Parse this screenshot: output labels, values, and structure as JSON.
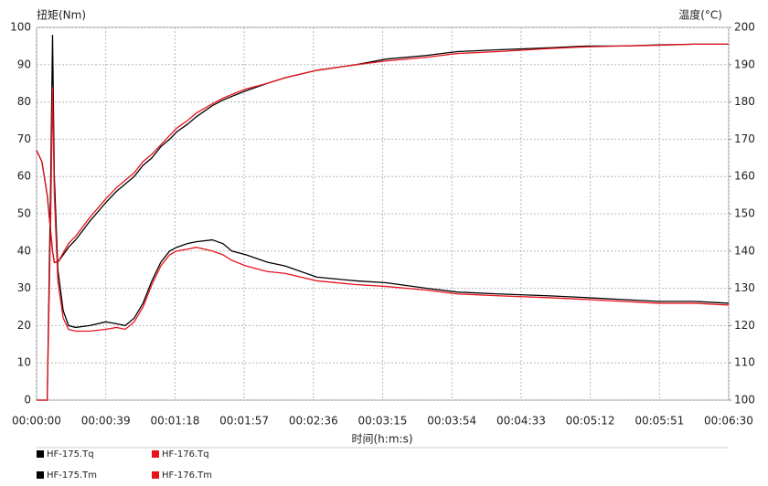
{
  "chart_data": {
    "type": "line",
    "y_label": "扭矩(Nm)",
    "y2_label": "温度(°C)",
    "x_label": "时间(h:m:s)",
    "x": [
      0,
      3,
      6,
      8,
      9,
      10,
      12,
      15,
      18,
      22,
      30,
      39,
      45,
      50,
      55,
      60,
      65,
      70,
      75,
      79,
      85,
      90,
      99,
      105,
      110,
      118,
      130,
      140,
      158,
      180,
      197,
      220,
      237,
      260,
      288,
      310,
      330,
      350,
      370,
      390
    ],
    "series": [
      {
        "name": "HF-175.Tq",
        "color": "#000000",
        "axis": "y",
        "values": [
          0,
          0,
          0,
          60,
          98,
          60,
          35,
          24,
          20,
          19.5,
          20,
          21,
          20.5,
          20,
          22,
          26,
          32,
          37,
          40,
          41,
          42,
          42.5,
          43,
          42,
          40,
          39,
          37,
          36,
          33,
          32,
          31.5,
          30,
          29,
          28.5,
          28,
          27.5,
          27,
          26.5,
          26.5,
          26
        ]
      },
      {
        "name": "HF-176.Tq",
        "color": "#e8141c",
        "axis": "y",
        "values": [
          0,
          0,
          0,
          50,
          84,
          55,
          32,
          22,
          19,
          18.5,
          18.5,
          19,
          19.5,
          19,
          21,
          25,
          31,
          36,
          39,
          40,
          40.5,
          41,
          40,
          39,
          37.5,
          36,
          34.5,
          34,
          32,
          31,
          30.5,
          29.5,
          28.5,
          28,
          27.5,
          27,
          26.5,
          26,
          26,
          25.5
        ]
      },
      {
        "name": "HF-175.Tm",
        "color": "#000000",
        "axis": "y2",
        "values": [
          167,
          164,
          155,
          145,
          140,
          137,
          137,
          139,
          141,
          143,
          148,
          153,
          156,
          158,
          160,
          163,
          165,
          168,
          170,
          172,
          174,
          176,
          179,
          180.5,
          181.5,
          183,
          185,
          186.5,
          188.5,
          190,
          191.5,
          192.5,
          193.5,
          194,
          194.5,
          195,
          195,
          195.3,
          195.5,
          195.5
        ]
      },
      {
        "name": "HF-176.Tm",
        "color": "#e8141c",
        "axis": "y2",
        "values": [
          167,
          164,
          155,
          145,
          140,
          137,
          137,
          139.5,
          142,
          144,
          149,
          154,
          157,
          159,
          161,
          164,
          166,
          168.5,
          171,
          173,
          175,
          177,
          179.5,
          181,
          182,
          183.5,
          185,
          186.5,
          188.5,
          190,
          191,
          192,
          193,
          193.5,
          194.3,
          194.8,
          195,
          195.2,
          195.5,
          195.5
        ]
      }
    ],
    "xlim": [
      0,
      390
    ],
    "xticks": [
      {
        "value": 0,
        "label": "00:00:00"
      },
      {
        "value": 39,
        "label": "00:00:39"
      },
      {
        "value": 78,
        "label": "00:01:18"
      },
      {
        "value": 117,
        "label": "00:01:57"
      },
      {
        "value": 156,
        "label": "00:02:36"
      },
      {
        "value": 195,
        "label": "00:03:15"
      },
      {
        "value": 234,
        "label": "00:03:54"
      },
      {
        "value": 273,
        "label": "00:04:33"
      },
      {
        "value": 312,
        "label": "00:05:12"
      },
      {
        "value": 351,
        "label": "00:05:51"
      },
      {
        "value": 390,
        "label": "00:06:30"
      }
    ],
    "ylim": [
      0,
      100
    ],
    "yticks": [
      0,
      10,
      20,
      30,
      40,
      50,
      60,
      70,
      80,
      90,
      100
    ],
    "y2lim": [
      100,
      200
    ],
    "y2ticks": [
      100,
      110,
      120,
      130,
      140,
      150,
      160,
      170,
      180,
      190,
      200
    ],
    "grid": true
  }
}
